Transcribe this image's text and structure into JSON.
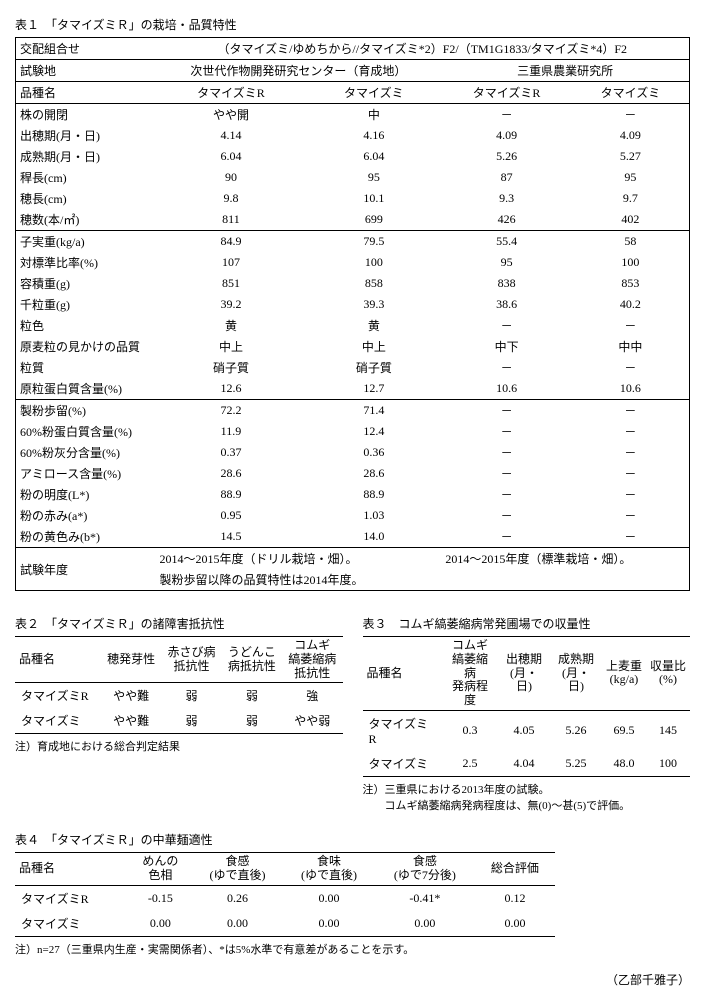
{
  "table1": {
    "caption": "表１　「タマイズミＲ」の栽培・品質特性",
    "cross_label": "交配組合せ",
    "cross_value": "（タマイズミ/ゆめちから//タマイズミ*2）F2/（TM1G1833/タマイズミ*4）F2",
    "site_label": "試験地",
    "site1": "次世代作物開発研究センター（育成地）",
    "site2": "三重県農業研究所",
    "var_label": "品種名",
    "col1": "タマイズミR",
    "col2": "タマイズミ",
    "col3": "タマイズミR",
    "col4": "タマイズミ",
    "sections": [
      {
        "rows": [
          {
            "label": "株の開閉",
            "v": [
              "やや開",
              "中",
              "－",
              "－"
            ]
          },
          {
            "label": "出穂期(月・日)",
            "v": [
              "4.14",
              "4.16",
              "4.09",
              "4.09"
            ]
          },
          {
            "label": "成熟期(月・日)",
            "v": [
              "6.04",
              "6.04",
              "5.26",
              "5.27"
            ]
          },
          {
            "label": "稈長(cm)",
            "v": [
              "90",
              "95",
              "87",
              "95"
            ]
          },
          {
            "label": "穂長(cm)",
            "v": [
              "9.8",
              "10.1",
              "9.3",
              "9.7"
            ]
          },
          {
            "label": "穂数(本/㎡)",
            "v": [
              "811",
              "699",
              "426",
              "402"
            ]
          }
        ]
      },
      {
        "rows": [
          {
            "label": "子実重(kg/a)",
            "v": [
              "84.9",
              "79.5",
              "55.4",
              "58"
            ]
          },
          {
            "label": "対標準比率(%)",
            "v": [
              "107",
              "100",
              "95",
              "100"
            ]
          },
          {
            "label": "容積重(g)",
            "v": [
              "851",
              "858",
              "838",
              "853"
            ]
          },
          {
            "label": "千粒重(g)",
            "v": [
              "39.2",
              "39.3",
              "38.6",
              "40.2"
            ]
          },
          {
            "label": "粒色",
            "v": [
              "黄",
              "黄",
              "－",
              "－"
            ]
          },
          {
            "label": "原麦粒の見かけの品質",
            "v": [
              "中上",
              "中上",
              "中下",
              "中中"
            ]
          },
          {
            "label": "粒質",
            "v": [
              "硝子質",
              "硝子質",
              "－",
              "－"
            ]
          },
          {
            "label": "原粒蛋白質含量(%)",
            "v": [
              "12.6",
              "12.7",
              "10.6",
              "10.6"
            ]
          }
        ]
      },
      {
        "rows": [
          {
            "label": "製粉歩留(%)",
            "v": [
              "72.2",
              "71.4",
              "－",
              "－"
            ]
          },
          {
            "label": "60%粉蛋白質含量(%)",
            "v": [
              "11.9",
              "12.4",
              "－",
              "－"
            ]
          },
          {
            "label": "60%粉灰分含量(%)",
            "v": [
              "0.37",
              "0.36",
              "－",
              "－"
            ]
          },
          {
            "label": "アミロース含量(%)",
            "v": [
              "28.6",
              "28.6",
              "－",
              "－"
            ]
          },
          {
            "label": "粉の明度(L*)",
            "v": [
              "88.9",
              "88.9",
              "－",
              "－"
            ]
          },
          {
            "label": "粉の赤み(a*)",
            "v": [
              "0.95",
              "1.03",
              "－",
              "－"
            ]
          },
          {
            "label": "粉の黄色み(b*)",
            "v": [
              "14.5",
              "14.0",
              "－",
              "－"
            ]
          }
        ]
      }
    ],
    "footer_label": "試験年度",
    "footer1a": "2014～2015年度（ドリル栽培・畑）。",
    "footer1b": "製粉歩留以降の品質特性は2014年度。",
    "footer2": "2014～2015年度（標準栽培・畑）。"
  },
  "table2": {
    "caption": "表２　「タマイズミＲ」の諸障害抵抗性",
    "headers": [
      "品種名",
      "穂発芽性",
      "赤さび病\n抵抗性",
      "うどんこ\n病抵抗性",
      "コムギ\n縞萎縮病\n抵抗性"
    ],
    "rows": [
      {
        "v": [
          "タマイズミR",
          "やや難",
          "弱",
          "弱",
          "強"
        ]
      },
      {
        "v": [
          "タマイズミ",
          "やや難",
          "弱",
          "弱",
          "やや弱"
        ]
      }
    ],
    "note": "注）育成地における総合判定結果"
  },
  "table3": {
    "caption": "表３　コムギ縞萎縮病常発圃場での収量性",
    "headers": [
      "品種名",
      "コムギ\n縞萎縮病\n発病程度",
      "出穂期\n(月・日)",
      "成熟期\n(月・日)",
      "上麦重\n(kg/a)",
      "収量比\n(%)"
    ],
    "rows": [
      {
        "v": [
          "タマイズミR",
          "0.3",
          "4.05",
          "5.26",
          "69.5",
          "145"
        ]
      },
      {
        "v": [
          "タマイズミ",
          "2.5",
          "4.04",
          "5.25",
          "48.0",
          "100"
        ]
      }
    ],
    "note1": "注）三重県における2013年度の試験。",
    "note2": "　　コムギ縞萎縮病発病程度は、無(0)～甚(5)で評価。"
  },
  "table4": {
    "caption": "表４　「タマイズミＲ」の中華麺適性",
    "headers": [
      "品種名",
      "めんの\n色相",
      "食感\n(ゆで直後)",
      "食味\n(ゆで直後)",
      "食感\n(ゆで7分後)",
      "総合評価"
    ],
    "rows": [
      {
        "v": [
          "タマイズミR",
          "-0.15",
          "0.26",
          "0.00",
          "-0.41*",
          "0.12"
        ]
      },
      {
        "v": [
          "タマイズミ",
          "0.00",
          "0.00",
          "0.00",
          "0.00",
          "0.00"
        ]
      }
    ],
    "note": "注）n=27（三重県内生産・実需関係者）、*は5%水準で有意差があることを示す。"
  },
  "author": "（乙部千雅子）"
}
